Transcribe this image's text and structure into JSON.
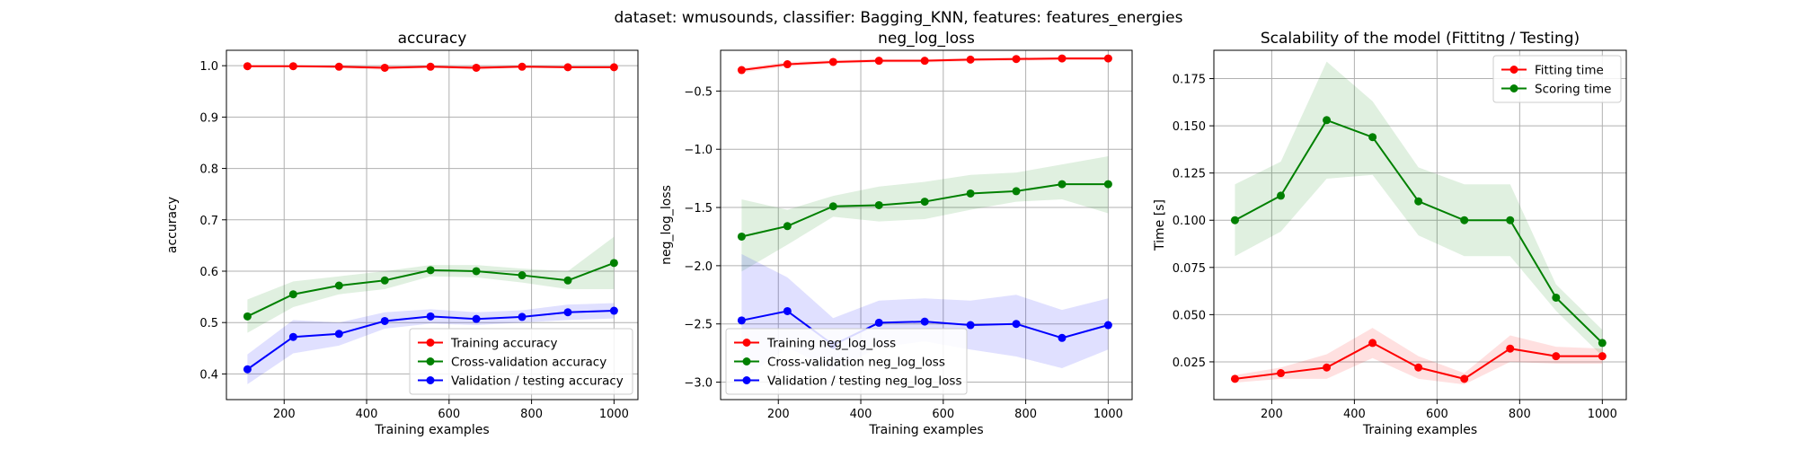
{
  "figure": {
    "title": "dataset: wmusounds, classifier: Bagging_KNN, features: features_energies"
  },
  "chart_data": [
    {
      "type": "line",
      "title": "accuracy",
      "xlabel": "Training examples",
      "ylabel": "accuracy",
      "xlim": [
        60,
        1058
      ],
      "ylim": [
        0.35,
        1.03
      ],
      "xticks": [
        200,
        400,
        600,
        800,
        1000
      ],
      "yticks": [
        0.4,
        0.5,
        0.6,
        0.7,
        0.8,
        0.9,
        1.0
      ],
      "ytick_labels": [
        "0.4",
        "0.5",
        "0.6",
        "0.7",
        "0.8",
        "0.9",
        "1.0"
      ],
      "grid": true,
      "legend_position": "lower-right",
      "x": [
        111,
        222,
        333,
        444,
        555,
        666,
        777,
        888,
        1000
      ],
      "series": [
        {
          "name": "Training accuracy",
          "color": "#ff0000",
          "values": [
            0.999,
            0.999,
            0.998,
            0.996,
            0.998,
            0.996,
            0.998,
            0.997,
            0.997
          ],
          "band_low": [
            0.997,
            0.997,
            0.995,
            0.992,
            0.996,
            0.992,
            0.996,
            0.995,
            0.995
          ],
          "band_high": [
            1.0,
            1.0,
            1.0,
            1.0,
            1.0,
            1.0,
            1.0,
            0.999,
            0.999
          ]
        },
        {
          "name": "Cross-validation accuracy",
          "color": "#008000",
          "values": [
            0.512,
            0.555,
            0.572,
            0.582,
            0.602,
            0.6,
            0.592,
            0.582,
            0.616
          ],
          "band_low": [
            0.48,
            0.53,
            0.555,
            0.565,
            0.59,
            0.588,
            0.578,
            0.565,
            0.565
          ],
          "band_high": [
            0.545,
            0.58,
            0.59,
            0.6,
            0.612,
            0.612,
            0.605,
            0.6,
            0.667
          ]
        },
        {
          "name": "Validation / testing accuracy",
          "color": "#0000ff",
          "values": [
            0.409,
            0.472,
            0.478,
            0.503,
            0.512,
            0.507,
            0.511,
            0.52,
            0.523
          ],
          "band_low": [
            0.38,
            0.44,
            0.455,
            0.488,
            0.498,
            0.495,
            0.5,
            0.505,
            0.508
          ],
          "band_high": [
            0.438,
            0.505,
            0.5,
            0.52,
            0.526,
            0.52,
            0.524,
            0.535,
            0.538
          ]
        }
      ]
    },
    {
      "type": "line",
      "title": "neg_log_loss",
      "xlabel": "Training examples",
      "ylabel": "neg_log_loss",
      "xlim": [
        60,
        1058
      ],
      "ylim": [
        -3.15,
        -0.15
      ],
      "xticks": [
        200,
        400,
        600,
        800,
        1000
      ],
      "yticks": [
        -3.0,
        -2.5,
        -2.0,
        -1.5,
        -1.0,
        -0.5
      ],
      "ytick_labels": [
        "−3.0",
        "−2.5",
        "−2.0",
        "−1.5",
        "−1.0",
        "−0.5"
      ],
      "grid": true,
      "legend_position": "lower-left",
      "x": [
        111,
        222,
        333,
        444,
        555,
        666,
        777,
        888,
        1000
      ],
      "series": [
        {
          "name": "Training neg_log_loss",
          "color": "#ff0000",
          "values": [
            -0.32,
            -0.27,
            -0.25,
            -0.24,
            -0.24,
            -0.23,
            -0.225,
            -0.22,
            -0.22
          ],
          "band_low": [
            -0.34,
            -0.29,
            -0.265,
            -0.255,
            -0.255,
            -0.245,
            -0.24,
            -0.235,
            -0.235
          ],
          "band_high": [
            -0.3,
            -0.25,
            -0.235,
            -0.225,
            -0.225,
            -0.215,
            -0.21,
            -0.205,
            -0.205
          ]
        },
        {
          "name": "Cross-validation neg_log_loss",
          "color": "#008000",
          "values": [
            -1.75,
            -1.66,
            -1.49,
            -1.48,
            -1.45,
            -1.38,
            -1.36,
            -1.3,
            -1.3
          ],
          "band_low": [
            -2.05,
            -1.82,
            -1.58,
            -1.62,
            -1.6,
            -1.52,
            -1.45,
            -1.43,
            -1.55
          ],
          "band_high": [
            -1.43,
            -1.52,
            -1.4,
            -1.32,
            -1.28,
            -1.22,
            -1.2,
            -1.13,
            -1.06
          ]
        },
        {
          "name": "Validation / testing neg_log_loss",
          "color": "#0000ff",
          "values": [
            -2.47,
            -2.39,
            -2.68,
            -2.49,
            -2.48,
            -2.51,
            -2.5,
            -2.62,
            -2.51
          ],
          "band_low": [
            -2.98,
            -2.7,
            -2.9,
            -2.7,
            -2.65,
            -2.72,
            -2.78,
            -2.88,
            -2.72
          ],
          "band_high": [
            -1.9,
            -2.1,
            -2.45,
            -2.3,
            -2.28,
            -2.3,
            -2.25,
            -2.38,
            -2.28
          ]
        }
      ]
    },
    {
      "type": "line",
      "title": "Scalability of the model (Fittitng / Testing)",
      "xlabel": "Training examples",
      "ylabel": "Time [s]",
      "xlim": [
        60,
        1058
      ],
      "ylim": [
        0.005,
        0.19
      ],
      "xticks": [
        200,
        400,
        600,
        800,
        1000
      ],
      "yticks": [
        0.025,
        0.05,
        0.075,
        0.1,
        0.125,
        0.15,
        0.175
      ],
      "ytick_labels": [
        "0.025",
        "0.050",
        "0.075",
        "0.100",
        "0.125",
        "0.150",
        "0.175"
      ],
      "grid": true,
      "legend_position": "top-right",
      "x": [
        111,
        222,
        333,
        444,
        555,
        666,
        777,
        888,
        1000
      ],
      "series": [
        {
          "name": "Fitting time",
          "color": "#ff0000",
          "values": [
            0.016,
            0.019,
            0.022,
            0.035,
            0.022,
            0.016,
            0.032,
            0.028,
            0.028
          ],
          "band_low": [
            0.014,
            0.016,
            0.016,
            0.027,
            0.016,
            0.013,
            0.025,
            0.024,
            0.024
          ],
          "band_high": [
            0.018,
            0.022,
            0.029,
            0.043,
            0.028,
            0.019,
            0.039,
            0.033,
            0.032
          ]
        },
        {
          "name": "Scoring time",
          "color": "#008000",
          "values": [
            0.1,
            0.113,
            0.153,
            0.144,
            0.11,
            0.1,
            0.1,
            0.059,
            0.035
          ],
          "band_low": [
            0.081,
            0.094,
            0.122,
            0.124,
            0.092,
            0.081,
            0.081,
            0.052,
            0.028
          ],
          "band_high": [
            0.119,
            0.131,
            0.184,
            0.163,
            0.128,
            0.119,
            0.119,
            0.066,
            0.042
          ]
        }
      ]
    }
  ]
}
